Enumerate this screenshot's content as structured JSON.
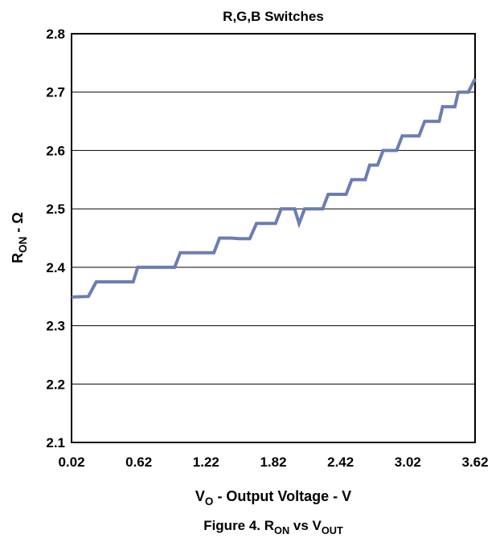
{
  "chart_data": {
    "type": "line",
    "title": "R,G,B Switches",
    "caption": {
      "main": "Figure 4. R",
      "sub1": "ON",
      "mid": " vs V",
      "sub2": "OUT"
    },
    "xlabel": {
      "main": "V",
      "sub": "O",
      "rest": " - Output Voltage - V"
    },
    "ylabel": {
      "main": "R",
      "sub": "ON",
      "rest": " - Ω"
    },
    "xlim": [
      0.02,
      3.62
    ],
    "ylim": [
      2.1,
      2.8
    ],
    "x_ticks": [
      "0.02",
      "0.62",
      "1.22",
      "1.82",
      "2.42",
      "3.02",
      "3.62"
    ],
    "y_ticks": [
      "2.1",
      "2.2",
      "2.3",
      "2.4",
      "2.5",
      "2.6",
      "2.7",
      "2.8"
    ],
    "grid": "horizontal",
    "line_color": "#6b7db3",
    "series": [
      {
        "x": [
          0.02,
          0.17,
          0.24,
          0.57,
          0.61,
          0.94,
          0.99,
          1.29,
          1.34,
          1.44,
          1.52,
          1.61,
          1.67,
          1.84,
          1.89,
          2.01,
          2.05,
          2.1,
          2.26,
          2.31,
          2.47,
          2.52,
          2.64,
          2.68,
          2.75,
          2.8,
          2.92,
          2.97,
          3.12,
          3.17,
          3.3,
          3.33,
          3.44,
          3.47,
          3.53,
          3.56,
          3.62
        ],
        "y": [
          2.349,
          2.35,
          2.375,
          2.375,
          2.4,
          2.4,
          2.425,
          2.425,
          2.45,
          2.45,
          2.449,
          2.449,
          2.475,
          2.475,
          2.5,
          2.5,
          2.475,
          2.5,
          2.5,
          2.525,
          2.525,
          2.55,
          2.55,
          2.575,
          2.575,
          2.6,
          2.6,
          2.625,
          2.625,
          2.65,
          2.65,
          2.675,
          2.675,
          2.7,
          2.7,
          2.7,
          2.723
        ]
      }
    ]
  }
}
